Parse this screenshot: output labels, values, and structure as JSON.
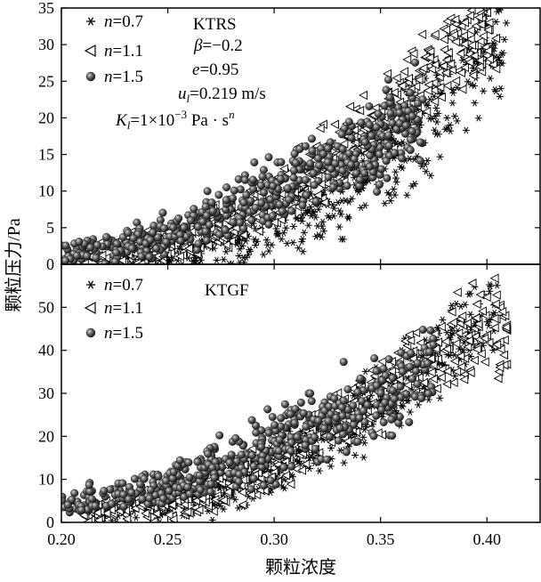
{
  "chart_data": {
    "type": "scatter",
    "xlabel": "颗粒浓度",
    "ylabel": "颗粒压力/Pa",
    "xlim": [
      0.2,
      0.425
    ],
    "x_ticks": [
      "0.20",
      "0.25",
      "0.30",
      "0.35",
      "0.40"
    ],
    "x_tick_values": [
      0.2,
      0.25,
      0.3,
      0.35,
      0.4
    ],
    "panels": [
      {
        "name": "KTRS",
        "label": "KTRS",
        "ylim": [
          0,
          35
        ],
        "y_ticks": [
          "0",
          "5",
          "10",
          "15",
          "20",
          "25",
          "30",
          "35"
        ],
        "y_tick_values": [
          0,
          5,
          10,
          15,
          20,
          25,
          30,
          35
        ],
        "parameters": {
          "beta": {
            "symbol": "β",
            "rest": "=−0.2"
          },
          "e": {
            "symbol": "e",
            "rest": "=0.95"
          },
          "u": {
            "symbol": "u",
            "sub": "l",
            "rest": "=0.219 m/s"
          },
          "K": {
            "symbol": "K",
            "sub": "l",
            "rest1": "=1×10",
            "sup": "−3",
            "rest2": " Pa · s",
            "sup2": "n"
          }
        },
        "series": [
          {
            "name": "n=0.7",
            "n_value": "=0.7",
            "marker": "asterisk",
            "x_range": [
              0.22,
              0.41
            ],
            "anchors": [
              [
                0.22,
                0.5
              ],
              [
                0.28,
                2.5
              ],
              [
                0.32,
                8
              ],
              [
                0.36,
                16
              ],
              [
                0.385,
                24
              ],
              [
                0.4,
                30
              ],
              [
                0.41,
                27
              ]
            ],
            "spread": 6
          },
          {
            "name": "n=1.1",
            "n_value": "=1.1",
            "marker": "triangle-left",
            "x_range": [
              0.21,
              0.405
            ],
            "anchors": [
              [
                0.21,
                1
              ],
              [
                0.26,
                3
              ],
              [
                0.3,
                8
              ],
              [
                0.34,
                17
              ],
              [
                0.37,
                25
              ],
              [
                0.39,
                31
              ],
              [
                0.405,
                30
              ]
            ],
            "spread": 5
          },
          {
            "name": "n=1.5",
            "n_value": "=1.5",
            "marker": "sphere",
            "x_range": [
              0.2,
              0.37
            ],
            "anchors": [
              [
                0.2,
                1.5
              ],
              [
                0.24,
                3
              ],
              [
                0.27,
                6
              ],
              [
                0.3,
                10
              ],
              [
                0.33,
                14
              ],
              [
                0.35,
                18
              ],
              [
                0.37,
                20
              ]
            ],
            "spread": 5
          }
        ]
      },
      {
        "name": "KTGF",
        "label": "KTGF",
        "ylim": [
          0,
          60
        ],
        "y_ticks": [
          "0",
          "10",
          "20",
          "30",
          "40",
          "50"
        ],
        "y_tick_values": [
          0,
          10,
          20,
          30,
          40,
          50
        ],
        "series": [
          {
            "name": "n=0.7",
            "n_value": "=0.7",
            "marker": "asterisk",
            "x_range": [
              0.22,
              0.405
            ],
            "anchors": [
              [
                0.22,
                2
              ],
              [
                0.27,
                6
              ],
              [
                0.31,
                15
              ],
              [
                0.35,
                28
              ],
              [
                0.38,
                40
              ],
              [
                0.4,
                50
              ],
              [
                0.405,
                45
              ]
            ],
            "spread": 8
          },
          {
            "name": "n=1.1",
            "n_value": "=1.1",
            "marker": "triangle-left",
            "x_range": [
              0.21,
              0.41
            ],
            "anchors": [
              [
                0.21,
                2
              ],
              [
                0.26,
                5
              ],
              [
                0.3,
                13
              ],
              [
                0.34,
                27
              ],
              [
                0.37,
                38
              ],
              [
                0.4,
                45
              ],
              [
                0.41,
                44
              ]
            ],
            "spread": 8
          },
          {
            "name": "n=1.5",
            "n_value": "=1.5",
            "marker": "sphere",
            "x_range": [
              0.2,
              0.375
            ],
            "anchors": [
              [
                0.2,
                4
              ],
              [
                0.24,
                7
              ],
              [
                0.28,
                14
              ],
              [
                0.31,
                20
              ],
              [
                0.34,
                28
              ],
              [
                0.36,
                31
              ],
              [
                0.375,
                38
              ]
            ],
            "spread": 8
          }
        ]
      }
    ],
    "legend_n_label": "n"
  }
}
